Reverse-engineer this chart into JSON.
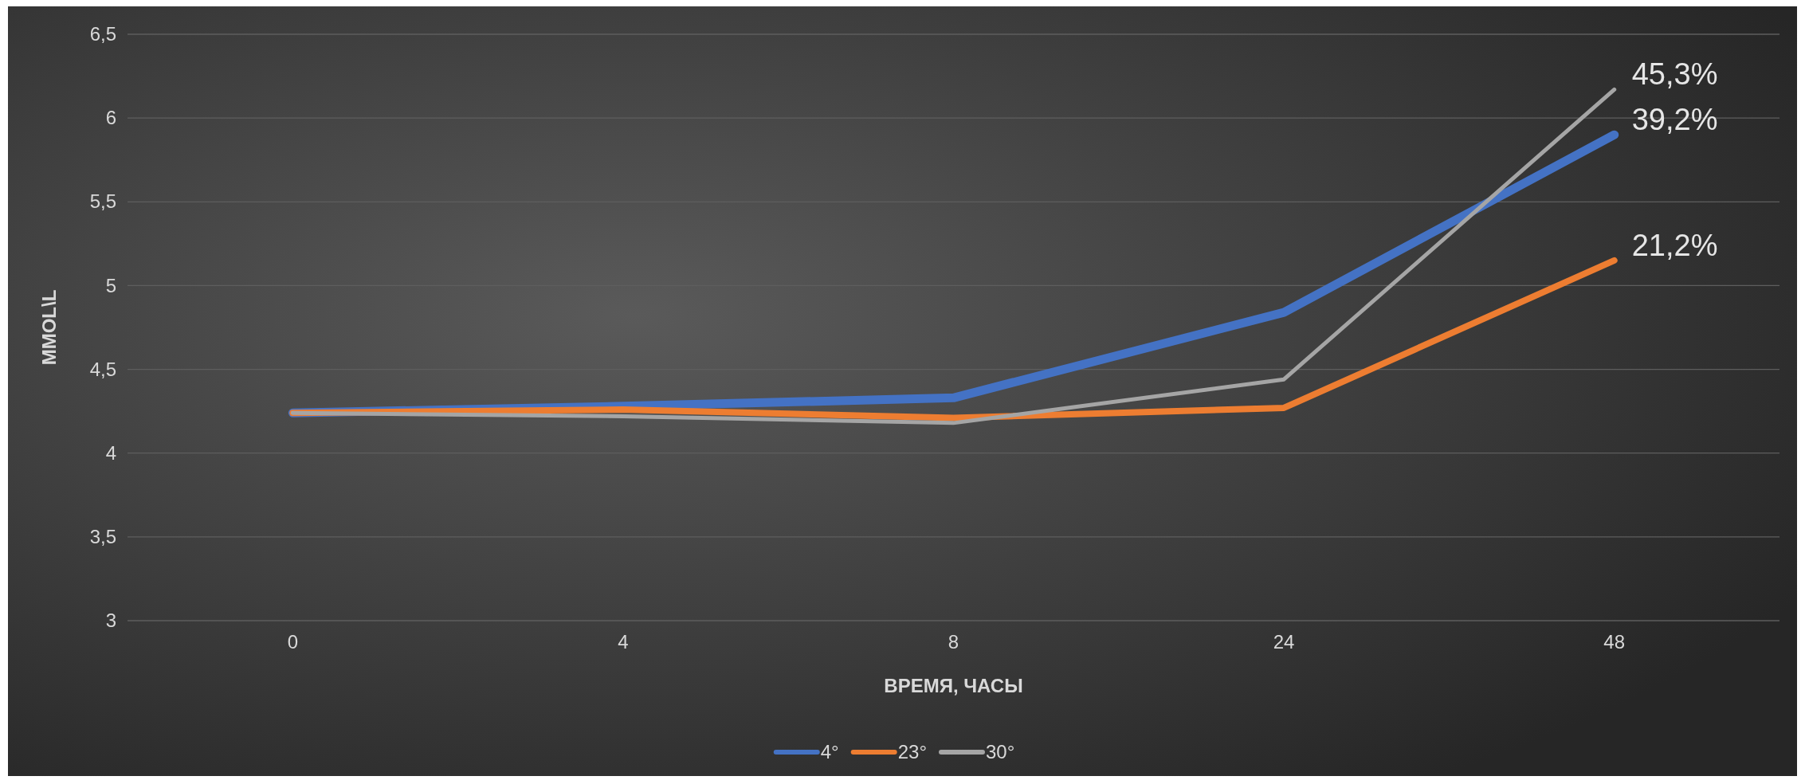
{
  "chart_data": {
    "type": "line",
    "xlabel": "ВРЕМЯ, ЧАСЫ",
    "ylabel": "MMOL\\L",
    "categories": [
      "0",
      "4",
      "8",
      "24",
      "48"
    ],
    "series": [
      {
        "name": "4°",
        "color": "#4472c4",
        "values": [
          4.24,
          4.28,
          4.33,
          4.84,
          5.9
        ]
      },
      {
        "name": "23°",
        "color": "#ed7d31",
        "values": [
          4.24,
          4.26,
          4.21,
          4.27,
          5.15
        ]
      },
      {
        "name": "30°",
        "color": "#a5a5a5",
        "values": [
          4.24,
          4.22,
          4.18,
          4.44,
          6.17
        ]
      }
    ],
    "ylim": [
      3,
      6.5
    ],
    "yticks": [
      3,
      {
        "value": 3.5,
        "label": "3,5"
      },
      4,
      {
        "value": 4.5,
        "label": "4,5"
      },
      5,
      {
        "value": 5.5,
        "label": "5,5"
      },
      6,
      {
        "value": 6.5,
        "label": "6,5"
      }
    ],
    "grid": "y",
    "legend": "bottom",
    "marker": "none",
    "line_style": "solid",
    "annotations": [
      {
        "text": "45,3%",
        "x": "48",
        "y": 6.17
      },
      {
        "text": "39,2%",
        "x": "48",
        "y": 5.9
      },
      {
        "text": "21,2%",
        "x": "48",
        "y": 5.15
      }
    ]
  }
}
